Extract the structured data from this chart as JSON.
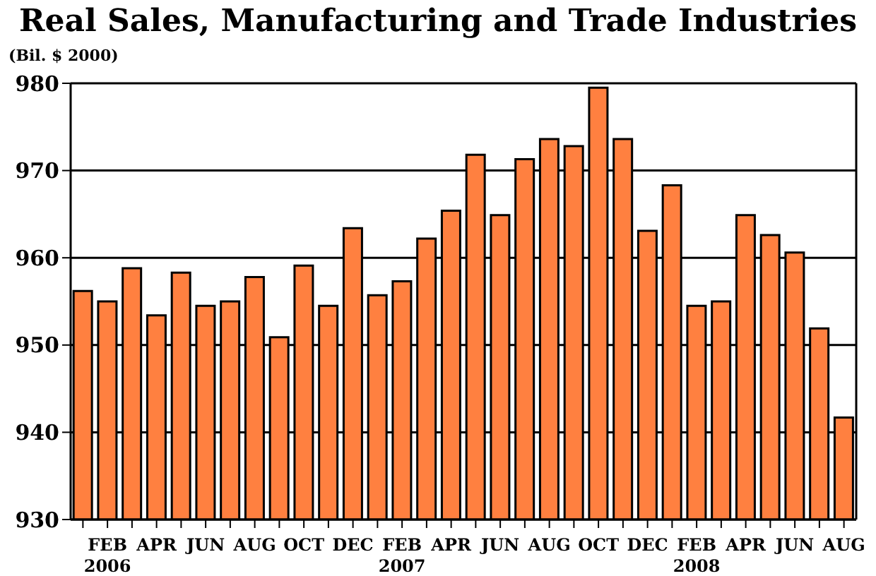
{
  "chart_data": {
    "type": "bar",
    "title": "Real Sales, Manufacturing and Trade Industries",
    "ylabel": "(Bil. $ 2000)",
    "categories": [
      null,
      "FEB\n2006",
      null,
      "APR",
      null,
      "JUN",
      null,
      "AUG",
      null,
      "OCT",
      null,
      "DEC",
      null,
      "FEB\n2007",
      null,
      "APR",
      null,
      "JUN",
      null,
      "AUG",
      null,
      "OCT",
      null,
      "DEC",
      null,
      "FEB\n2008",
      null,
      "APR",
      null,
      "JUN",
      null,
      "AUG"
    ],
    "values": [
      956.2,
      955.0,
      958.8,
      953.4,
      958.3,
      954.5,
      955.0,
      957.8,
      950.9,
      959.1,
      954.5,
      963.4,
      955.7,
      957.3,
      962.2,
      965.4,
      971.8,
      964.9,
      971.3,
      973.6,
      972.8,
      979.5,
      973.6,
      963.1,
      968.3,
      954.5,
      955.0,
      964.9,
      962.6,
      960.6,
      951.9,
      941.7
    ],
    "color": "#ff8040",
    "ylim": [
      930,
      980
    ],
    "yticks": [
      930,
      940,
      950,
      960,
      970,
      980
    ],
    "grid": "y",
    "legend": false
  }
}
